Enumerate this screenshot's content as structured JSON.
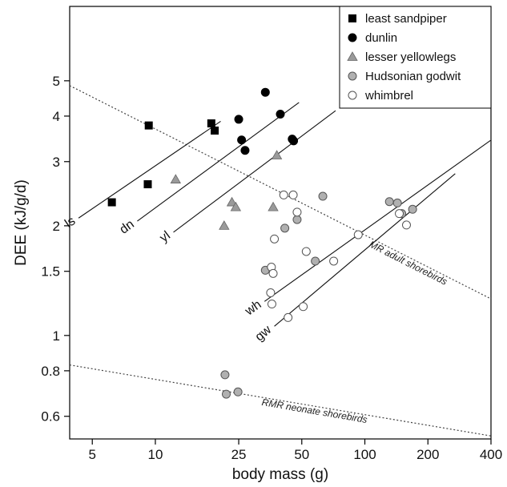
{
  "chart_data": {
    "type": "scatter",
    "xlabel": "body mass (g)",
    "ylabel": "DEE (kJ/g/d)",
    "x_scale": "log",
    "y_scale": "log",
    "xlim": [
      3.9,
      400
    ],
    "ylim": [
      0.52,
      8.0
    ],
    "x_ticks": [
      {
        "value": 5,
        "label": "5"
      },
      {
        "value": 10,
        "label": "10"
      },
      {
        "value": 25,
        "label": "25"
      },
      {
        "value": 50,
        "label": "50"
      },
      {
        "value": 100,
        "label": "100"
      },
      {
        "value": 200,
        "label": "200"
      },
      {
        "value": 400,
        "label": "400"
      }
    ],
    "y_ticks": [
      {
        "value": 0.6,
        "label": "0.6"
      },
      {
        "value": 0.8,
        "label": "0.8"
      },
      {
        "value": 1,
        "label": "1"
      },
      {
        "value": 1.5,
        "label": "1.5"
      },
      {
        "value": 2,
        "label": "2"
      },
      {
        "value": 3,
        "label": "3"
      },
      {
        "value": 4,
        "label": "4"
      },
      {
        "value": 5,
        "label": "5"
      }
    ],
    "legend_position": "top-right",
    "series": [
      {
        "name": "least sandpiper",
        "marker": "square",
        "color": "#000000",
        "points": [
          [
            6.2,
            2.32
          ],
          [
            9.2,
            2.6
          ],
          [
            9.3,
            3.77
          ],
          [
            18.5,
            3.82
          ],
          [
            19.2,
            3.65
          ]
        ]
      },
      {
        "name": "dunlin",
        "marker": "circle",
        "color": "#000000",
        "points": [
          [
            25.0,
            3.92
          ],
          [
            25.8,
            3.44
          ],
          [
            26.8,
            3.22
          ],
          [
            33.5,
            4.65
          ],
          [
            39.5,
            4.05
          ],
          [
            45.0,
            3.46
          ],
          [
            45.7,
            3.42
          ]
        ]
      },
      {
        "name": "lesser yellowlegs",
        "marker": "triangle",
        "color": "#9a9a9a",
        "points": [
          [
            12.5,
            2.68
          ],
          [
            21.3,
            2.0
          ],
          [
            23.2,
            2.32
          ],
          [
            24.2,
            2.25
          ],
          [
            36.5,
            2.25
          ],
          [
            38.0,
            3.12
          ]
        ]
      },
      {
        "name": "Hudsonian godwit",
        "marker": "circle",
        "color": "#b0b0b0",
        "points": [
          [
            21.5,
            0.78
          ],
          [
            21.8,
            0.69
          ],
          [
            24.8,
            0.7
          ],
          [
            33.5,
            1.51
          ],
          [
            41.5,
            1.97
          ],
          [
            47.5,
            2.08
          ],
          [
            58.0,
            1.6
          ],
          [
            63.0,
            2.41
          ],
          [
            131.0,
            2.33
          ],
          [
            143.0,
            2.31
          ],
          [
            150.0,
            2.16
          ],
          [
            169.0,
            2.22
          ]
        ]
      },
      {
        "name": "whimbrel",
        "marker": "circle",
        "color": "#ffffff",
        "points": [
          [
            35.5,
            1.31
          ],
          [
            35.8,
            1.54
          ],
          [
            36.0,
            1.22
          ],
          [
            36.5,
            1.48
          ],
          [
            37.0,
            1.84
          ],
          [
            41.0,
            2.43
          ],
          [
            43.0,
            1.12
          ],
          [
            45.5,
            2.43
          ],
          [
            47.5,
            2.18
          ],
          [
            50.8,
            1.2
          ],
          [
            52.5,
            1.7
          ],
          [
            71.0,
            1.6
          ],
          [
            93.0,
            1.89
          ],
          [
            146.0,
            2.16
          ],
          [
            158.0,
            2.01
          ]
        ]
      }
    ],
    "regression_lines": [
      {
        "label": "ls",
        "from": [
          4.3,
          2.1
        ],
        "to": [
          20.5,
          3.87
        ]
      },
      {
        "label": "dn",
        "from": [
          8.2,
          2.06
        ],
        "to": [
          48.5,
          4.36
        ]
      },
      {
        "label": "yl",
        "from": [
          12.2,
          1.92
        ],
        "to": [
          72.5,
          4.14
        ]
      },
      {
        "label": "wh",
        "from": [
          33.2,
          1.24
        ],
        "to": [
          398,
          3.43
        ]
      },
      {
        "label": "gw",
        "from": [
          37.0,
          1.06
        ],
        "to": [
          270,
          2.78
        ]
      }
    ],
    "reference_lines": [
      {
        "label": "MR adult shorebirds",
        "from": [
          3.9,
          4.85
        ],
        "to": [
          400,
          1.26
        ]
      },
      {
        "label": "RMR neonate shorebirds",
        "from": [
          3.9,
          0.83
        ],
        "to": [
          400,
          0.53
        ]
      }
    ]
  }
}
